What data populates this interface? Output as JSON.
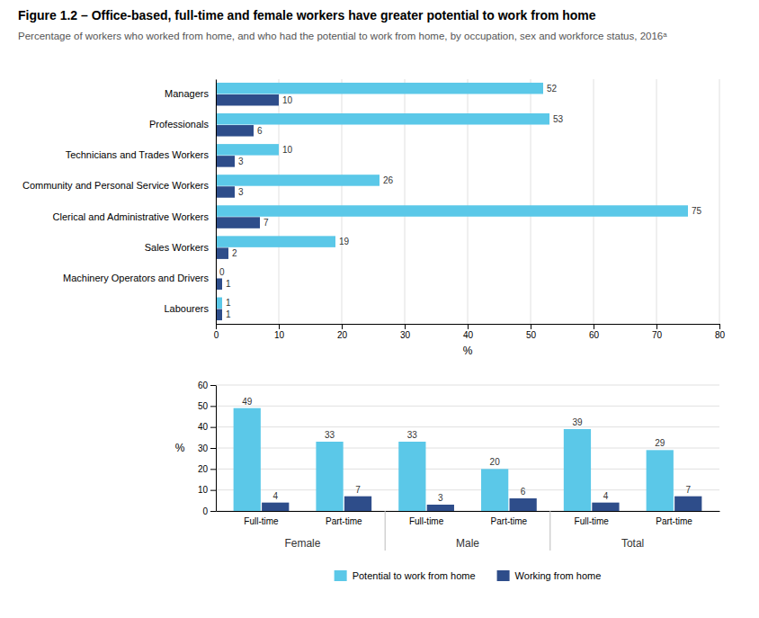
{
  "chart_data": [
    {
      "type": "bar",
      "title": "Figure 1.2 – Office-based, full-time and female workers have greater potential to work from home",
      "subtitle": "Percentage of workers who worked from home, and who had the potential to work from home, by occupation, sex and workforce status, 2016ᵃ",
      "orientation": "horizontal",
      "categories": [
        "Managers",
        "Professionals",
        "Technicians and Trades Workers",
        "Community and Personal Service Workers",
        "Clerical and Administrative Workers",
        "Sales Workers",
        "Machinery Operators and Drivers",
        "Labourers"
      ],
      "series": [
        {
          "color": "#5BC8E8",
          "values": [
            52,
            53,
            10,
            26,
            75,
            19,
            0,
            1
          ]
        },
        {
          "color": "#2E4D8A",
          "values": [
            10,
            6,
            3,
            3,
            7,
            2,
            1,
            1
          ]
        }
      ],
      "xlim": [
        0,
        80
      ],
      "xticks": [
        0,
        10,
        20,
        30,
        40,
        50,
        60,
        70,
        80
      ],
      "xlabel": "%",
      "grid": true,
      "data_labels": true
    },
    {
      "type": "bar",
      "categories": [
        "Full-time",
        "Part-time",
        "Full-time",
        "Part-time",
        "Full-time",
        "Part-time"
      ],
      "category_groups": [
        "Female",
        "Male",
        "Total"
      ],
      "series": [
        {
          "name": "Potential to work from home",
          "color": "#5BC8E8",
          "values": [
            49,
            33,
            33,
            20,
            39,
            29
          ]
        },
        {
          "name": "Working from home",
          "color": "#2E4D8A",
          "values": [
            4,
            7,
            3,
            6,
            4,
            7
          ]
        }
      ],
      "ylim": [
        0,
        60
      ],
      "yticks": [
        0,
        10,
        20,
        30,
        40,
        50,
        60
      ],
      "ylabel": "%",
      "grid": true,
      "data_labels": true,
      "legend": "bottom"
    }
  ]
}
